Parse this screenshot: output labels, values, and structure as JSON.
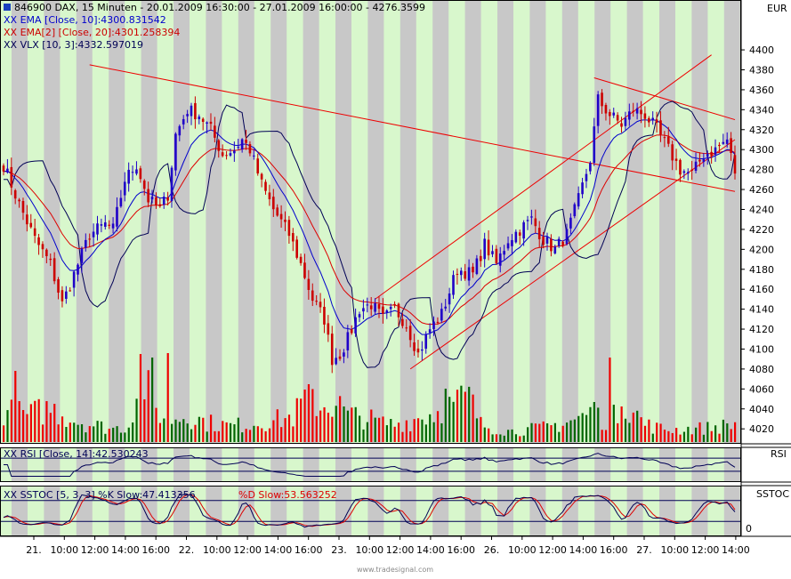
{
  "header": {
    "title": "846900  DAX, 15 Minuten - 20.01.2009 16:30:00 - 27.01.2009 16:00:00 - 4276.3599",
    "currency": "EUR"
  },
  "legends": {
    "ema10": "XX EMA [Close, 10]:4300.831542",
    "ema20": "XX EMA[2] [Close, 20]:4301.258394",
    "vlx": "XX VLX [10, 3]:4332.597019",
    "rsi": "XX RSI [Close, 14]:42.530243",
    "sstoc_k": "XX SSTOC [5, 3, 3] %K Slow:47.413356",
    "sstoc_d": "%D Slow:53.563252"
  },
  "panels": {
    "rsi_label": "RSI",
    "sstoc_label": "SSTOC",
    "sstoc_tick": "0"
  },
  "watermark": "www.tradesignal.com",
  "colors": {
    "up": "#1f00c8",
    "down": "#cc0000",
    "ema10": "#0000cc",
    "ema20": "#dd0000",
    "vlx": "#000055",
    "trend": "#ee0000",
    "vol_up": "#006600",
    "vol_down": "#ee0000",
    "band_green": "#d8f7cc",
    "band_gray": "#c8c8c8"
  },
  "chart_data": {
    "type": "candlestick",
    "title": "846900  DAX, 15 Minuten",
    "ylabel": "EUR",
    "ylim": [
      4005,
      4450
    ],
    "yticks": [
      4020,
      4040,
      4060,
      4080,
      4100,
      4120,
      4140,
      4160,
      4180,
      4200,
      4220,
      4240,
      4260,
      4280,
      4300,
      4320,
      4340,
      4360,
      4380,
      4400
    ],
    "xticks": [
      "21.",
      "10:00",
      "12:00",
      "14:00",
      "16:00",
      "22.",
      "10:00",
      "12:00",
      "14:00",
      "16:00",
      "23.",
      "10:00",
      "12:00",
      "14:00",
      "16:00",
      "26.",
      "10:00",
      "12:00",
      "14:00",
      "16:00",
      "27.",
      "10:00",
      "12:00",
      "14:00"
    ],
    "close_anchors": [
      [
        0,
        4285
      ],
      [
        4,
        4245
      ],
      [
        8,
        4210
      ],
      [
        12,
        4185
      ],
      [
        15,
        4145
      ],
      [
        18,
        4175
      ],
      [
        22,
        4215
      ],
      [
        26,
        4225
      ],
      [
        28,
        4220
      ],
      [
        31,
        4270
      ],
      [
        34,
        4285
      ],
      [
        37,
        4250
      ],
      [
        40,
        4240
      ],
      [
        42,
        4255
      ],
      [
        44,
        4315
      ],
      [
        47,
        4340
      ],
      [
        50,
        4335
      ],
      [
        53,
        4320
      ],
      [
        56,
        4295
      ],
      [
        59,
        4300
      ],
      [
        61,
        4310
      ],
      [
        63,
        4300
      ],
      [
        66,
        4265
      ],
      [
        69,
        4240
      ],
      [
        73,
        4215
      ],
      [
        76,
        4185
      ],
      [
        79,
        4150
      ],
      [
        82,
        4130
      ],
      [
        84,
        4090
      ],
      [
        86,
        4095
      ],
      [
        88,
        4110
      ],
      [
        91,
        4140
      ],
      [
        94,
        4145
      ],
      [
        97,
        4130
      ],
      [
        100,
        4140
      ],
      [
        103,
        4125
      ],
      [
        106,
        4095
      ],
      [
        109,
        4120
      ],
      [
        112,
        4135
      ],
      [
        116,
        4180
      ],
      [
        120,
        4175
      ],
      [
        123,
        4205
      ],
      [
        126,
        4185
      ],
      [
        129,
        4210
      ],
      [
        132,
        4220
      ],
      [
        135,
        4230
      ],
      [
        138,
        4210
      ],
      [
        141,
        4200
      ],
      [
        144,
        4215
      ],
      [
        147,
        4250
      ],
      [
        150,
        4290
      ],
      [
        152,
        4350
      ],
      [
        155,
        4335
      ],
      [
        158,
        4325
      ],
      [
        161,
        4340
      ],
      [
        164,
        4335
      ],
      [
        167,
        4320
      ],
      [
        170,
        4300
      ],
      [
        173,
        4280
      ],
      [
        176,
        4275
      ],
      [
        179,
        4295
      ],
      [
        182,
        4300
      ],
      [
        185,
        4310
      ],
      [
        187,
        4276
      ]
    ],
    "volume_anchors": [
      [
        0,
        35
      ],
      [
        6,
        30
      ],
      [
        12,
        38
      ],
      [
        18,
        25
      ],
      [
        22,
        20
      ],
      [
        28,
        15
      ],
      [
        32,
        18
      ],
      [
        35,
        85
      ],
      [
        38,
        40
      ],
      [
        42,
        25
      ],
      [
        47,
        30
      ],
      [
        52,
        22
      ],
      [
        58,
        18
      ],
      [
        62,
        20
      ],
      [
        66,
        22
      ],
      [
        70,
        25
      ],
      [
        74,
        28
      ],
      [
        78,
        55
      ],
      [
        81,
        40
      ],
      [
        85,
        45
      ],
      [
        88,
        30
      ],
      [
        92,
        28
      ],
      [
        96,
        22
      ],
      [
        100,
        20
      ],
      [
        104,
        24
      ],
      [
        108,
        30
      ],
      [
        112,
        35
      ],
      [
        116,
        45
      ],
      [
        119,
        50
      ],
      [
        122,
        20
      ],
      [
        126,
        15
      ],
      [
        130,
        12
      ],
      [
        134,
        14
      ],
      [
        138,
        16
      ],
      [
        142,
        20
      ],
      [
        146,
        25
      ],
      [
        150,
        32
      ],
      [
        154,
        25
      ],
      [
        157,
        30
      ],
      [
        160,
        40
      ],
      [
        164,
        20
      ],
      [
        168,
        15
      ],
      [
        172,
        14
      ],
      [
        176,
        15
      ],
      [
        180,
        16
      ],
      [
        184,
        18
      ],
      [
        187,
        20
      ]
    ],
    "volume_spikes": [
      [
        3,
        80
      ],
      [
        38,
        95
      ],
      [
        42,
        100
      ],
      [
        78,
        65
      ],
      [
        113,
        60
      ],
      [
        151,
        45
      ],
      [
        155,
        95
      ],
      [
        158,
        40
      ]
    ],
    "rsi_range": [
      0,
      100
    ],
    "stoch_range": [
      0,
      100
    ]
  }
}
